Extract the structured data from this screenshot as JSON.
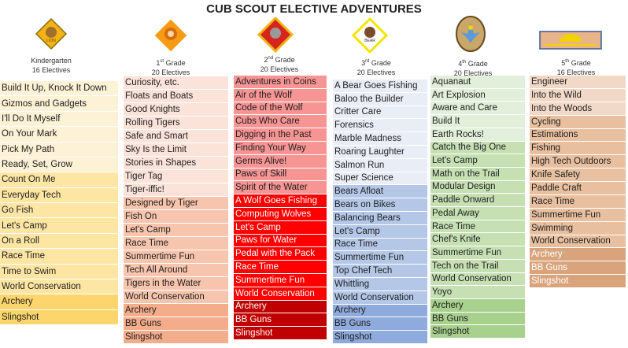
{
  "title": "CUB SCOUT ELECTIVE ADVENTURES",
  "columns": [
    {
      "grade": "Kindergarten",
      "grade_sup": "",
      "electives": "16 Electives",
      "badge": "lion-badge-icon",
      "groups": [
        {
          "color": "#fdf1d6",
          "text_color": "#1e1e1e",
          "items": [
            "Build It Up, Knock It Down",
            "Gizmos and Gadgets",
            "I'll Do It Myself",
            "On Your Mark",
            "Pick My Path",
            "Ready, Set, Grow"
          ]
        },
        {
          "color": "#fde6a3",
          "text_color": "#1e1e1e",
          "items": [
            "Count On Me",
            "Everyday Tech",
            "Go Fish",
            "Let's Camp",
            "On a Roll",
            "Race Time",
            "Time to Swim",
            "World Conservation"
          ]
        },
        {
          "color": "#fcd66c",
          "text_color": "#1e1e1e",
          "items": [
            "Archery",
            "Slingshot"
          ]
        }
      ]
    },
    {
      "grade": "1",
      "grade_sup": "st",
      "grade_suffix": " Grade",
      "electives": "20 Electives",
      "badge": "tiger-badge-icon",
      "groups": [
        {
          "color": "#fbe3da",
          "text_color": "#1e1e1e",
          "items": [
            "Curiosity, etc.",
            "Floats and Boats",
            "Good Knights",
            "Rolling Tigers",
            "Safe and Smart",
            "Sky Is the Limit",
            "Stories in Shapes",
            "Tiger Tag",
            "Tiger-iffic!"
          ]
        },
        {
          "color": "#f7c5ad",
          "text_color": "#1e1e1e",
          "items": [
            "Designed by Tiger",
            "Fish On",
            "Let's Camp",
            "Race Time",
            "Summertime Fun",
            "Tech All Around",
            "Tigers in the Water",
            "World Conservation"
          ]
        },
        {
          "color": "#f3ad8a",
          "text_color": "#1e1e1e",
          "items": [
            "Archery",
            "BB Guns",
            "Slingshot"
          ]
        }
      ]
    },
    {
      "grade": "2",
      "grade_sup": "nd",
      "grade_suffix": " Grade",
      "electives": "20 Electives",
      "badge": "wolf-badge-icon",
      "groups": [
        {
          "color": "#f79494",
          "text_color": "#1e1e1e",
          "items": [
            "Adventures in Coins",
            "Air of the Wolf",
            "Code of the Wolf",
            "Cubs Who Care",
            "Digging in the Past",
            "Finding Your Way",
            "Germs Alive!",
            "Paws of Skill",
            "Spirit of the Water"
          ]
        },
        {
          "color": "#ff0000",
          "text_color": "#ffffff",
          "items": [
            "A Wolf Goes Fishing",
            "Computing Wolves",
            "Let's Camp",
            "Paws for Water",
            "Pedal with the Pack",
            "Race Time",
            "Summertime Fun",
            "World Conservation"
          ]
        },
        {
          "color": "#c00000",
          "text_color": "#ffffff",
          "items": [
            "Archery",
            "BB Guns",
            "Slingshot"
          ]
        }
      ]
    },
    {
      "grade": "3",
      "grade_sup": "rd",
      "grade_suffix": " Grade",
      "electives": "20 Electives",
      "badge": "bear-badge-icon",
      "groups": [
        {
          "color": "#e9edf6",
          "text_color": "#1e1e1e",
          "items": [
            "A Bear Goes Fishing",
            "Baloo the Builder",
            "Critter Care",
            "Forensics",
            "Marble Madness",
            "Roaring Laughter",
            "Salmon Run",
            "Super Science"
          ]
        },
        {
          "color": "#b4c7e7",
          "text_color": "#1e1e1e",
          "items": [
            "Bears Afloat",
            "Bears on Bikes",
            "Balancing Bears",
            "Let's Camp",
            "Race Time",
            "Summertime Fun",
            "Top Chef Tech",
            "Whittling",
            "World Conservation"
          ]
        },
        {
          "color": "#8faadc",
          "text_color": "#1e1e1e",
          "items": [
            "Archery",
            "BB Guns",
            "Slingshot"
          ]
        }
      ]
    },
    {
      "grade": "4",
      "grade_sup": "th",
      "grade_suffix": " Grade",
      "electives": "20 Electives",
      "badge": "webelos-badge-icon",
      "groups": [
        {
          "color": "#e2efda",
          "text_color": "#1e1e1e",
          "items": [
            "Aquanaut",
            "Art Explosion",
            "Aware and Care",
            "Build It",
            "Earth Rocks!"
          ]
        },
        {
          "color": "#c6e0b4",
          "text_color": "#1e1e1e",
          "items": [
            "Catch the Big One",
            "Let's Camp",
            "Math on the Trail",
            "Modular Design",
            "Paddle Onward",
            "Pedal Away",
            "Race Time",
            "Chef's Knife",
            "Summertime Fun",
            "Tech on the Trail",
            "World Conservation",
            "Yoyo"
          ]
        },
        {
          "color": "#a9d18e",
          "text_color": "#1e1e1e",
          "items": [
            "Archery",
            "BB Guns",
            "Slingshot"
          ]
        }
      ]
    },
    {
      "grade": "5",
      "grade_sup": "th",
      "grade_suffix": " Grade",
      "electives": "16 Electives",
      "badge": "arrow-of-light-badge-icon",
      "groups": [
        {
          "color": "#f2d9c7",
          "text_color": "#1e1e1e",
          "items": [
            "Engineer",
            "Into the Wild",
            "Into the Woods"
          ]
        },
        {
          "color": "#e8c0a0",
          "text_color": "#1e1e1e",
          "items": [
            "Cycling",
            "Estimations",
            "Fishing",
            "High Tech Outdoors",
            "Knife Safety",
            "Paddle Craft",
            "Race Time",
            "Summertime Fun",
            "Swimming",
            "World Conservation"
          ]
        },
        {
          "color": "#d9a47c",
          "text_color": "#ffffff",
          "items": [
            "Archery",
            "BB Guns",
            "Slingshot"
          ]
        }
      ]
    }
  ]
}
